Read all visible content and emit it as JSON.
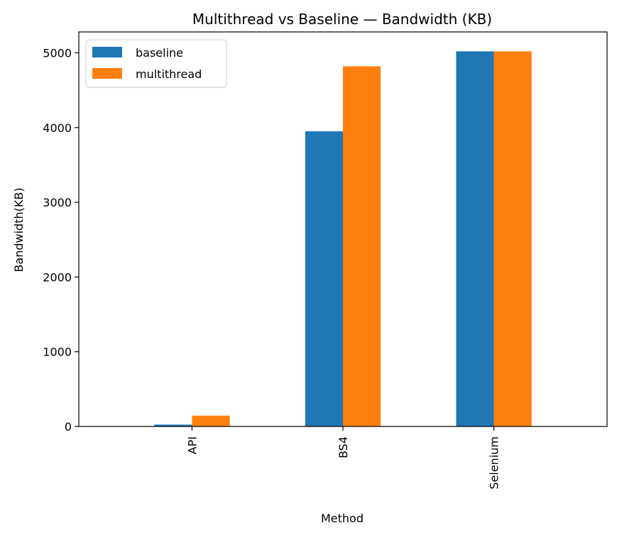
{
  "chart_data": {
    "type": "bar",
    "title": "Multithread vs Baseline — Bandwidth (KB)",
    "xlabel": "Method",
    "ylabel": "Bandwidth(KB)",
    "categories": [
      "API",
      "BS4",
      "Selenium"
    ],
    "series": [
      {
        "name": "baseline",
        "values": [
          25,
          3950,
          5020
        ],
        "color": "#1f77b4"
      },
      {
        "name": "multithread",
        "values": [
          145,
          4820,
          5020
        ],
        "color": "#ff7f0e"
      }
    ],
    "ylim": [
      0,
      5280
    ],
    "yticks": [
      0,
      1000,
      2000,
      3000,
      4000,
      5000
    ],
    "grid": false,
    "legend_position": "top-left",
    "x_tick_rotation": "vertical"
  }
}
